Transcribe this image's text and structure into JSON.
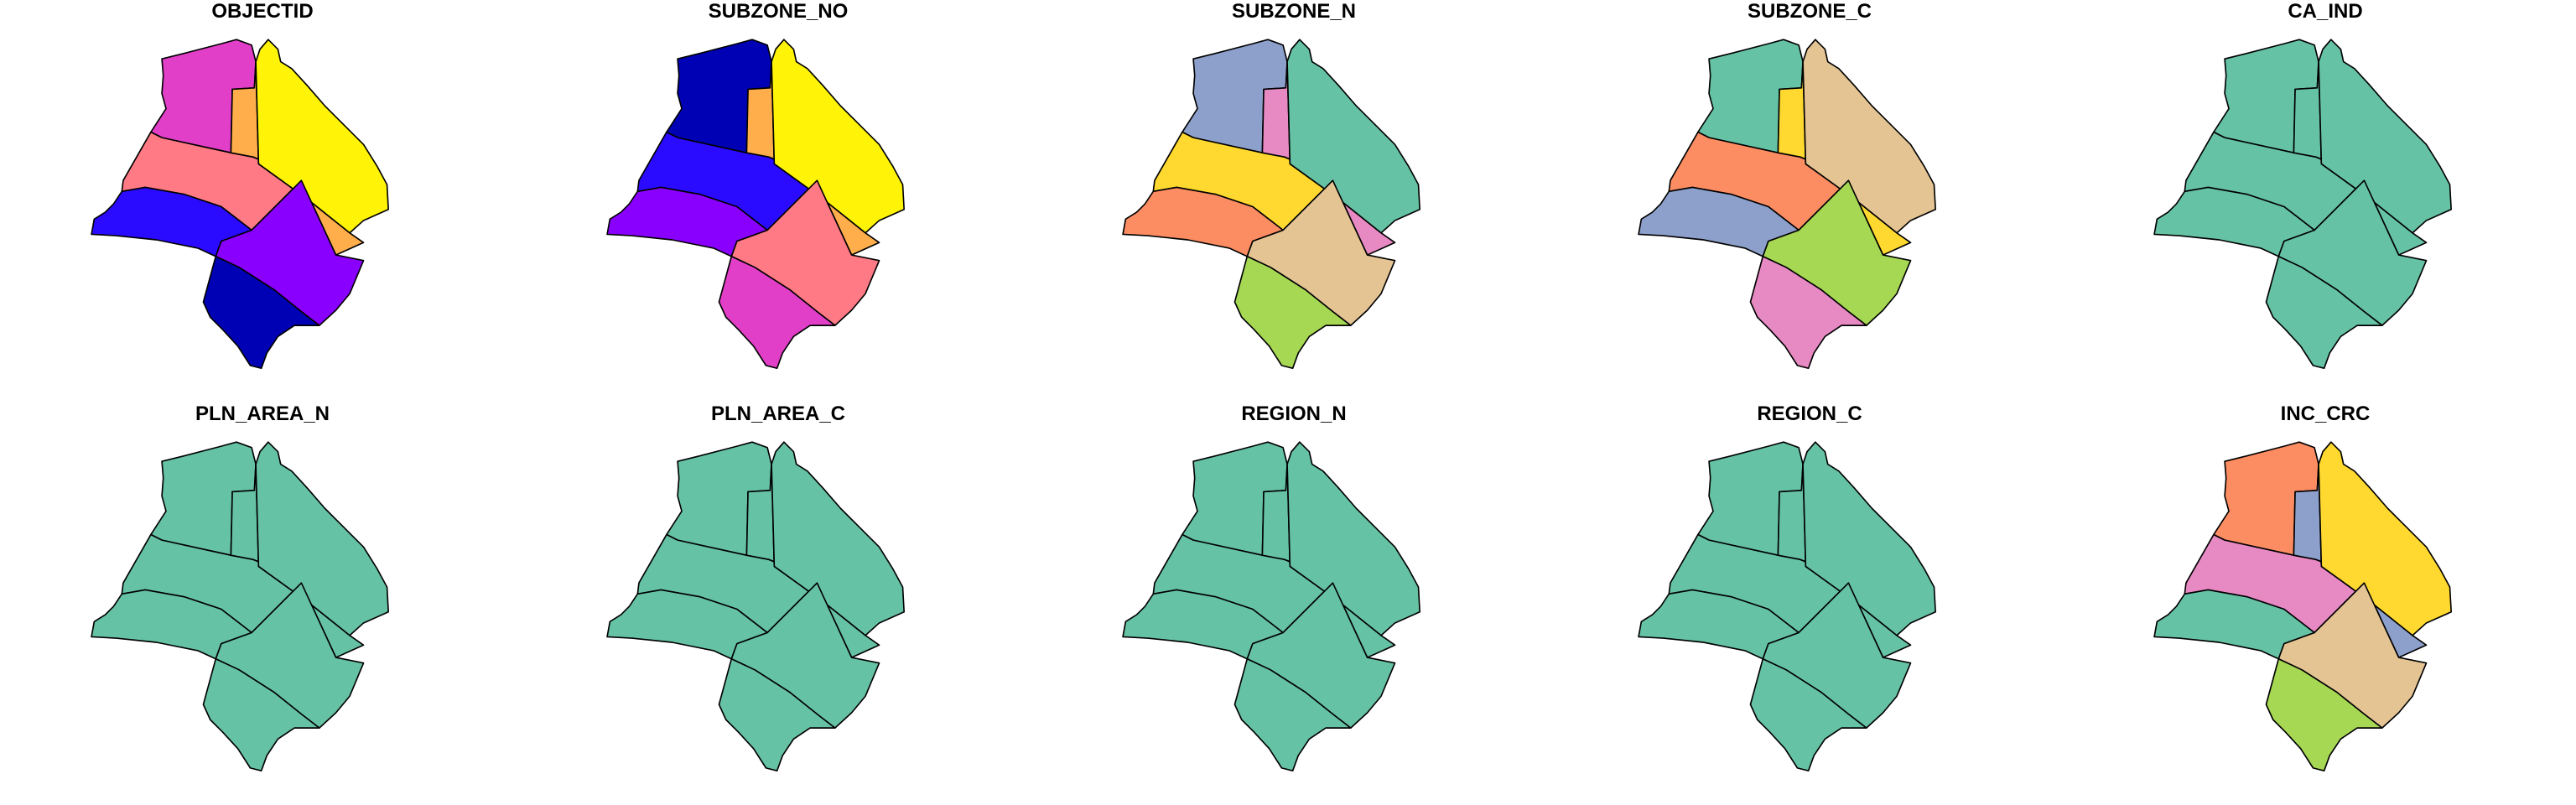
{
  "panels": [
    {
      "title": "OBJECTID",
      "fills": [
        "#E23FC9",
        "#FF7A85",
        "#FFAE4B",
        "#FFF307",
        "#2A0BFF",
        "#8A00FF",
        "#0000B4"
      ]
    },
    {
      "title": "SUBZONE_NO",
      "fills": [
        "#0000B4",
        "#2A0BFF",
        "#FFAE4B",
        "#FFF307",
        "#8A00FF",
        "#FF7A85",
        "#E23FC9"
      ]
    },
    {
      "title": "SUBZONE_N",
      "fills": [
        "#8DA0CB",
        "#FFD92F",
        "#E78AC3",
        "#66C2A5",
        "#FC8D62",
        "#E5C494",
        "#A6D854"
      ]
    },
    {
      "title": "SUBZONE_C",
      "fills": [
        "#66C2A5",
        "#FC8D62",
        "#FFD92F",
        "#E5C494",
        "#8DA0CB",
        "#A6D854",
        "#E78AC3"
      ]
    },
    {
      "title": "CA_IND",
      "fills": [
        "#66C2A5",
        "#66C2A5",
        "#66C2A5",
        "#66C2A5",
        "#66C2A5",
        "#66C2A5",
        "#66C2A5"
      ]
    },
    {
      "title": "PLN_AREA_N",
      "fills": [
        "#66C2A5",
        "#66C2A5",
        "#66C2A5",
        "#66C2A5",
        "#66C2A5",
        "#66C2A5",
        "#66C2A5"
      ]
    },
    {
      "title": "PLN_AREA_C",
      "fills": [
        "#66C2A5",
        "#66C2A5",
        "#66C2A5",
        "#66C2A5",
        "#66C2A5",
        "#66C2A5",
        "#66C2A5"
      ]
    },
    {
      "title": "REGION_N",
      "fills": [
        "#66C2A5",
        "#66C2A5",
        "#66C2A5",
        "#66C2A5",
        "#66C2A5",
        "#66C2A5",
        "#66C2A5"
      ]
    },
    {
      "title": "REGION_C",
      "fills": [
        "#66C2A5",
        "#66C2A5",
        "#66C2A5",
        "#66C2A5",
        "#66C2A5",
        "#66C2A5",
        "#66C2A5"
      ]
    },
    {
      "title": "INC_CRC",
      "fills": [
        "#FC8D62",
        "#E78AC3",
        "#8DA0CB",
        "#FFD92F",
        "#66C2A5",
        "#E5C494",
        "#A6D854"
      ]
    }
  ]
}
